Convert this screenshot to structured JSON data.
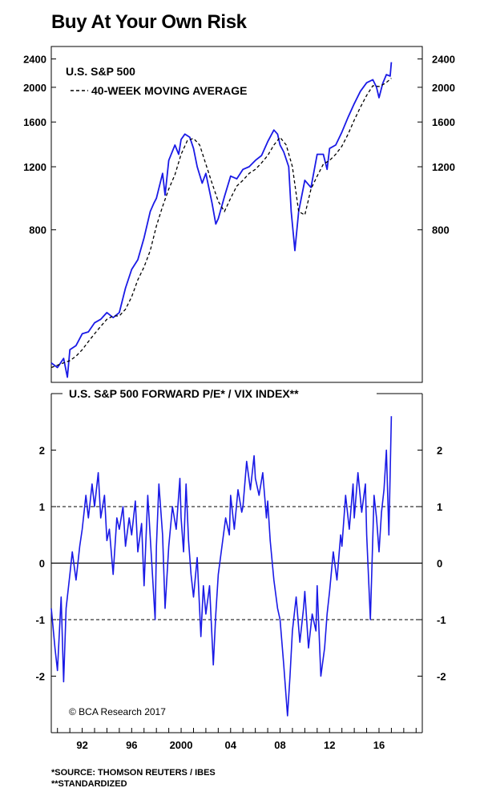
{
  "title": "Buy At Your Own Risk",
  "copyright": "© BCA Research 2017",
  "footnotes": [
    "*SOURCE: THOMSON REUTERS / IBES",
    "**STANDARDIZED"
  ],
  "colors": {
    "series": "#1a1ae6",
    "axis": "#000000"
  },
  "x_axis": {
    "start": 1989.5,
    "end": 2019.5,
    "ticks": [
      "92",
      "96",
      "2000",
      "04",
      "08",
      "12",
      "16"
    ],
    "tick_years": [
      1992,
      1996,
      2000,
      2004,
      2008,
      2012,
      2016
    ]
  },
  "chart_data": [
    {
      "type": "line",
      "title": "U.S. S&P 500",
      "legend": [
        "U.S. S&P 500",
        "40-WEEK MOVING AVERAGE"
      ],
      "y_scale": "log",
      "ylim": [
        300,
        2600
      ],
      "yticks": [
        "800",
        "1200",
        "1600",
        "2000",
        "2400"
      ],
      "ytick_values": [
        800,
        1200,
        1600,
        2000,
        2400
      ],
      "series": [
        {
          "name": "U.S. S&P 500",
          "style": "solid",
          "x": [
            1989.5,
            1990,
            1990.5,
            1990.8,
            1991,
            1991.5,
            1992,
            1992.5,
            1993,
            1993.5,
            1994,
            1994.5,
            1995,
            1995.5,
            1996,
            1996.5,
            1997,
            1997.5,
            1997.8,
            1998,
            1998.5,
            1998.7,
            1999,
            1999.5,
            1999.8,
            2000,
            2000.3,
            2000.7,
            2001,
            2001.3,
            2001.7,
            2002,
            2002.5,
            2002.8,
            2003,
            2003.5,
            2004,
            2004.5,
            2005,
            2005.5,
            2006,
            2006.5,
            2007,
            2007.5,
            2007.8,
            2008,
            2008.3,
            2008.7,
            2008.9,
            2009.2,
            2009.5,
            2010,
            2010.5,
            2011,
            2011.5,
            2011.8,
            2012,
            2012.5,
            2013,
            2013.5,
            2014,
            2014.5,
            2015,
            2015.5,
            2015.8,
            2016,
            2016.3,
            2016.6,
            2016.9,
            2017
          ],
          "values": [
            340,
            330,
            350,
            310,
            370,
            380,
            410,
            415,
            440,
            450,
            470,
            455,
            470,
            550,
            620,
            660,
            760,
            900,
            950,
            980,
            1150,
            1000,
            1250,
            1380,
            1300,
            1430,
            1480,
            1450,
            1350,
            1200,
            1080,
            1150,
            950,
            830,
            860,
            990,
            1130,
            1110,
            1180,
            1200,
            1250,
            1290,
            1410,
            1520,
            1480,
            1380,
            1320,
            1200,
            900,
            700,
            900,
            1100,
            1050,
            1300,
            1300,
            1180,
            1350,
            1380,
            1500,
            1650,
            1800,
            1950,
            2060,
            2100,
            2000,
            1870,
            2050,
            2170,
            2150,
            2350
          ]
        },
        {
          "name": "40-WEEK MOVING AVERAGE",
          "style": "dashed",
          "x": [
            1989.5,
            1990,
            1990.5,
            1991,
            1991.5,
            1992,
            1992.5,
            1993,
            1993.5,
            1994,
            1994.5,
            1995,
            1995.5,
            1996,
            1996.5,
            1997,
            1997.5,
            1998,
            1998.5,
            1999,
            1999.5,
            2000,
            2000.5,
            2001,
            2001.5,
            2002,
            2002.5,
            2003,
            2003.5,
            2004,
            2004.5,
            2005,
            2005.5,
            2006,
            2006.5,
            2007,
            2007.5,
            2008,
            2008.5,
            2009,
            2009.5,
            2010,
            2010.5,
            2011,
            2011.5,
            2012,
            2012.5,
            2013,
            2013.5,
            2014,
            2014.5,
            2015,
            2015.5,
            2016,
            2016.5,
            2017
          ],
          "values": [
            330,
            335,
            340,
            345,
            355,
            370,
            390,
            410,
            430,
            450,
            460,
            460,
            480,
            520,
            580,
            630,
            700,
            820,
            930,
            1040,
            1140,
            1300,
            1420,
            1440,
            1380,
            1220,
            1080,
            960,
            900,
            980,
            1060,
            1100,
            1150,
            1180,
            1230,
            1290,
            1380,
            1450,
            1380,
            1200,
            900,
            880,
            1040,
            1130,
            1220,
            1250,
            1300,
            1370,
            1480,
            1620,
            1760,
            1900,
            2020,
            2010,
            2050,
            2120
          ]
        }
      ]
    },
    {
      "type": "line",
      "title": "U.S. S&P 500 FORWARD P/E* / VIX INDEX**",
      "legend": [
        "U.S. S&P 500 FORWARD P/E* / VIX INDEX**"
      ],
      "ylim": [
        -3,
        3
      ],
      "yticks": [
        "-2",
        "-1",
        "0",
        "1",
        "2"
      ],
      "ytick_values": [
        -2,
        -1,
        0,
        1,
        2
      ],
      "reference_lines": [
        {
          "value": 1,
          "style": "dashed"
        },
        {
          "value": 0,
          "style": "solid"
        },
        {
          "value": -1,
          "style": "dashed"
        }
      ],
      "series": [
        {
          "name": "U.S. S&P 500 FORWARD P/E* / VIX INDEX**",
          "style": "solid",
          "x": [
            1989.5,
            1989.8,
            1990,
            1990.3,
            1990.5,
            1990.7,
            1991,
            1991.2,
            1991.5,
            1991.8,
            1992,
            1992.3,
            1992.5,
            1992.8,
            1993,
            1993.3,
            1993.5,
            1993.8,
            1994,
            1994.2,
            1994.5,
            1994.8,
            1995,
            1995.3,
            1995.5,
            1995.8,
            1996,
            1996.3,
            1996.5,
            1996.8,
            1997,
            1997.3,
            1997.6,
            1997.9,
            1998,
            1998.2,
            1998.5,
            1998.7,
            1999,
            1999.3,
            1999.6,
            1999.9,
            2000,
            2000.2,
            2000.4,
            2000.6,
            2000.8,
            2001,
            2001.3,
            2001.6,
            2001.8,
            2002,
            2002.3,
            2002.6,
            2002.8,
            2003,
            2003.3,
            2003.6,
            2003.9,
            2004,
            2004.3,
            2004.6,
            2004.9,
            2005,
            2005.3,
            2005.6,
            2005.9,
            2006,
            2006.3,
            2006.6,
            2006.9,
            2007,
            2007.2,
            2007.5,
            2007.8,
            2008,
            2008.3,
            2008.6,
            2008.8,
            2009,
            2009.3,
            2009.6,
            2009.9,
            2010,
            2010.3,
            2010.6,
            2010.9,
            2011,
            2011.3,
            2011.6,
            2011.8,
            2012,
            2012.3,
            2012.6,
            2012.9,
            2013,
            2013.3,
            2013.6,
            2013.9,
            2014,
            2014.3,
            2014.6,
            2014.9,
            2015,
            2015.3,
            2015.6,
            2015.8,
            2016,
            2016.2,
            2016.4,
            2016.6,
            2016.8,
            2017
          ],
          "values": [
            -0.8,
            -1.5,
            -1.9,
            -0.6,
            -2.1,
            -0.8,
            -0.2,
            0.2,
            -0.3,
            0.3,
            0.6,
            1.2,
            0.8,
            1.4,
            1.0,
            1.6,
            0.8,
            1.2,
            0.4,
            0.6,
            -0.2,
            0.8,
            0.6,
            1.0,
            0.3,
            0.8,
            0.5,
            1.1,
            0.2,
            0.7,
            -0.4,
            1.2,
            0.1,
            -1.0,
            0.3,
            1.4,
            0.5,
            -0.8,
            0.3,
            1.0,
            0.6,
            1.5,
            0.8,
            0.2,
            1.4,
            0.4,
            -0.2,
            -0.6,
            0.1,
            -1.3,
            -0.4,
            -0.9,
            -0.4,
            -1.8,
            -0.9,
            -0.2,
            0.3,
            0.8,
            0.5,
            1.2,
            0.6,
            1.3,
            0.9,
            1.0,
            1.8,
            1.3,
            1.9,
            1.5,
            1.2,
            1.6,
            0.8,
            1.1,
            0.4,
            -0.3,
            -0.8,
            -1.0,
            -1.8,
            -2.7,
            -2.0,
            -1.2,
            -0.6,
            -1.4,
            -0.8,
            -0.5,
            -1.5,
            -0.9,
            -1.2,
            -0.4,
            -2.0,
            -1.5,
            -0.9,
            -0.5,
            0.2,
            -0.3,
            0.5,
            0.3,
            1.2,
            0.6,
            1.4,
            0.8,
            1.6,
            0.9,
            1.4,
            0.5,
            -1.0,
            1.2,
            0.8,
            0.2,
            0.9,
            1.3,
            2.0,
            0.5,
            2.6
          ]
        }
      ]
    }
  ]
}
